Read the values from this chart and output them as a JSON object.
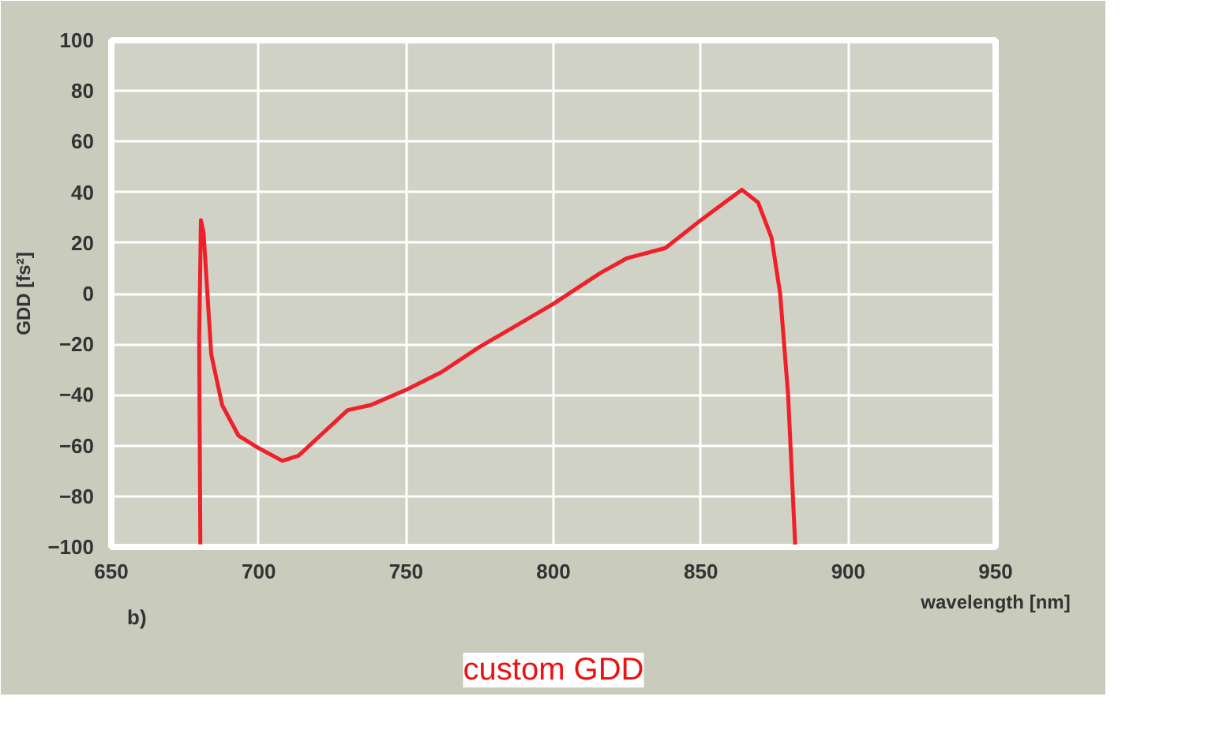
{
  "chart_data": {
    "type": "line",
    "xlabel": "wavelength [nm]",
    "ylabel": "GDD [fs²]",
    "annotations": [
      "b)",
      "custom GDD"
    ],
    "xlim": [
      650,
      950
    ],
    "ylim": [
      -100,
      100
    ],
    "xticks": [
      650,
      700,
      750,
      800,
      850,
      900,
      950
    ],
    "yticks": [
      -100,
      -80,
      -60,
      -40,
      -20,
      0,
      20,
      40,
      60,
      80,
      100
    ],
    "grid": true,
    "marker": "none",
    "line_style": "solid",
    "series": [
      {
        "color": "#f0202a",
        "x": [
          680.2,
          679.8,
          680.4,
          681.3,
          682.6,
          683.9,
          687.6,
          693.1,
          700,
          708,
          713.5,
          720.9,
          730.2,
          738,
          750,
          762,
          775,
          782.4,
          800,
          815.7,
          825,
          838,
          850,
          863.9,
          869.4,
          874,
          876.9,
          879.6,
          882
        ],
        "values": [
          -99,
          -18,
          29,
          24,
          0,
          -24,
          -44,
          -56,
          -61,
          -66,
          -64,
          -56,
          -46,
          -44,
          -38,
          -31,
          -21,
          -16,
          -4,
          8,
          14,
          18,
          29,
          41,
          36,
          22,
          0,
          -40,
          -99
        ]
      }
    ]
  }
}
